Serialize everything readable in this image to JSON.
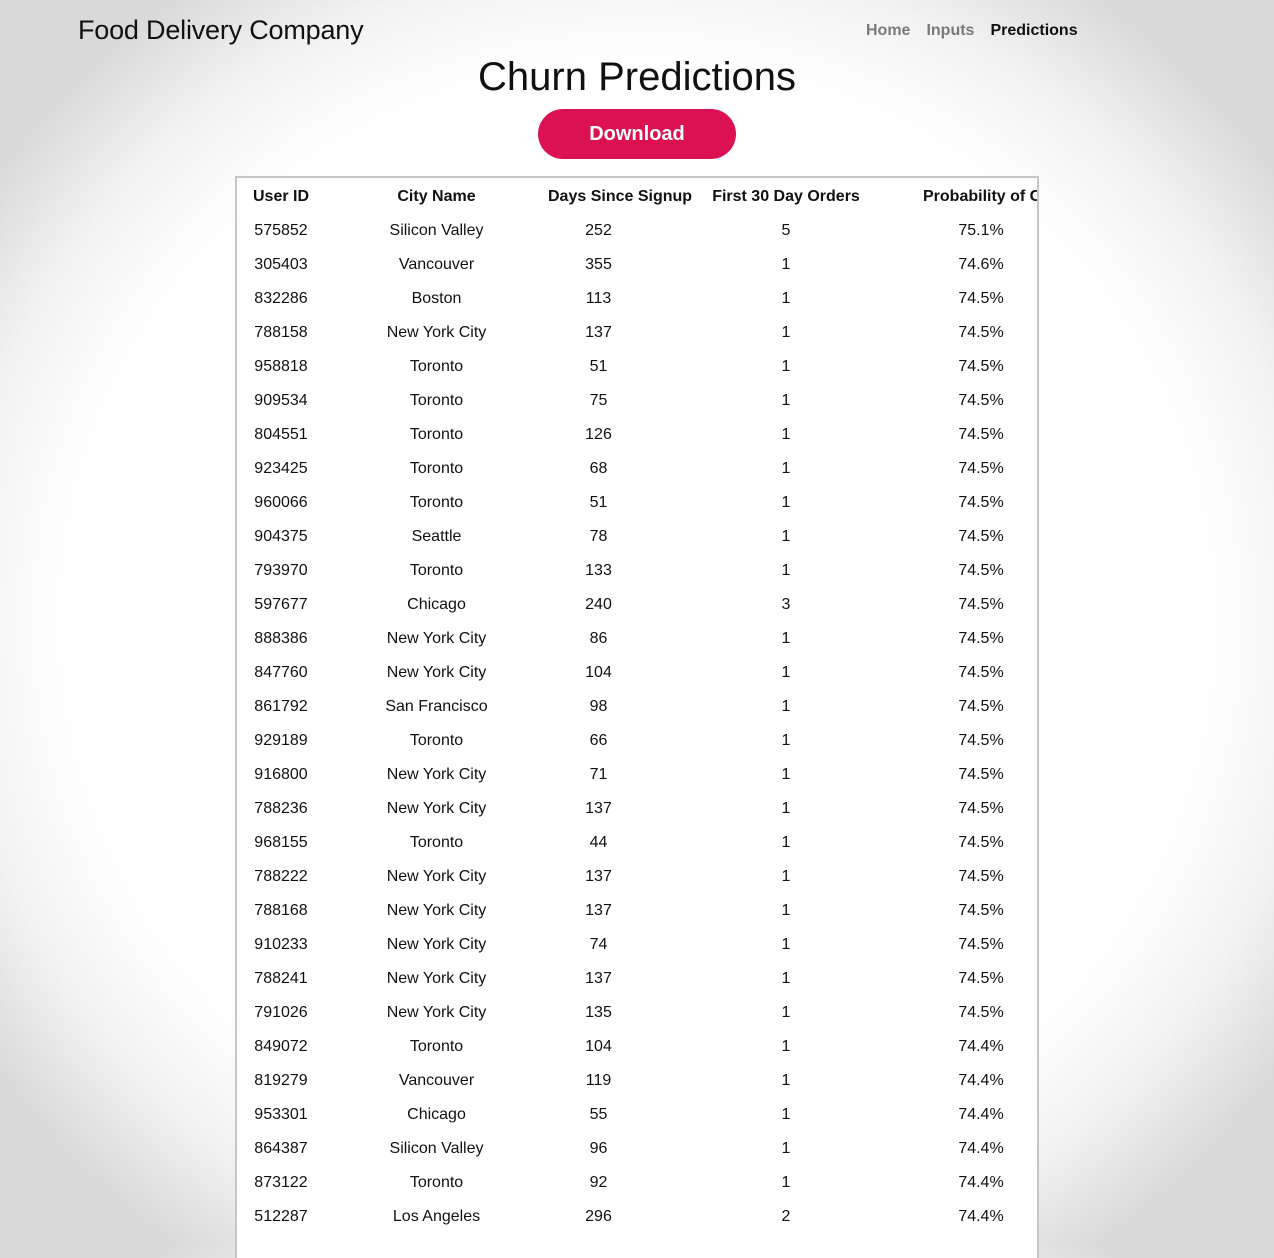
{
  "header": {
    "brand": "Food Delivery Company",
    "nav": [
      {
        "label": "Home",
        "active": false
      },
      {
        "label": "Inputs",
        "active": false
      },
      {
        "label": "Predictions",
        "active": true
      }
    ]
  },
  "main": {
    "title": "Churn Predictions",
    "download_label": "Download",
    "accent_color": "#dc1152"
  },
  "table": {
    "columns": [
      "User ID",
      "City Name",
      "Days Since Signup",
      "First 30 Day Orders",
      "Probability of Churn"
    ],
    "rows": [
      [
        "575852",
        "Silicon Valley",
        "252",
        "5",
        "75.1%"
      ],
      [
        "305403",
        "Vancouver",
        "355",
        "1",
        "74.6%"
      ],
      [
        "832286",
        "Boston",
        "113",
        "1",
        "74.5%"
      ],
      [
        "788158",
        "New York City",
        "137",
        "1",
        "74.5%"
      ],
      [
        "958818",
        "Toronto",
        "51",
        "1",
        "74.5%"
      ],
      [
        "909534",
        "Toronto",
        "75",
        "1",
        "74.5%"
      ],
      [
        "804551",
        "Toronto",
        "126",
        "1",
        "74.5%"
      ],
      [
        "923425",
        "Toronto",
        "68",
        "1",
        "74.5%"
      ],
      [
        "960066",
        "Toronto",
        "51",
        "1",
        "74.5%"
      ],
      [
        "904375",
        "Seattle",
        "78",
        "1",
        "74.5%"
      ],
      [
        "793970",
        "Toronto",
        "133",
        "1",
        "74.5%"
      ],
      [
        "597677",
        "Chicago",
        "240",
        "3",
        "74.5%"
      ],
      [
        "888386",
        "New York City",
        "86",
        "1",
        "74.5%"
      ],
      [
        "847760",
        "New York City",
        "104",
        "1",
        "74.5%"
      ],
      [
        "861792",
        "San Francisco",
        "98",
        "1",
        "74.5%"
      ],
      [
        "929189",
        "Toronto",
        "66",
        "1",
        "74.5%"
      ],
      [
        "916800",
        "New York City",
        "71",
        "1",
        "74.5%"
      ],
      [
        "788236",
        "New York City",
        "137",
        "1",
        "74.5%"
      ],
      [
        "968155",
        "Toronto",
        "44",
        "1",
        "74.5%"
      ],
      [
        "788222",
        "New York City",
        "137",
        "1",
        "74.5%"
      ],
      [
        "788168",
        "New York City",
        "137",
        "1",
        "74.5%"
      ],
      [
        "910233",
        "New York City",
        "74",
        "1",
        "74.5%"
      ],
      [
        "788241",
        "New York City",
        "137",
        "1",
        "74.5%"
      ],
      [
        "791026",
        "New York City",
        "135",
        "1",
        "74.5%"
      ],
      [
        "849072",
        "Toronto",
        "104",
        "1",
        "74.4%"
      ],
      [
        "819279",
        "Vancouver",
        "119",
        "1",
        "74.4%"
      ],
      [
        "953301",
        "Chicago",
        "55",
        "1",
        "74.4%"
      ],
      [
        "864387",
        "Silicon Valley",
        "96",
        "1",
        "74.4%"
      ],
      [
        "873122",
        "Toronto",
        "92",
        "1",
        "74.4%"
      ],
      [
        "512287",
        "Los Angeles",
        "296",
        "2",
        "74.4%"
      ]
    ]
  }
}
